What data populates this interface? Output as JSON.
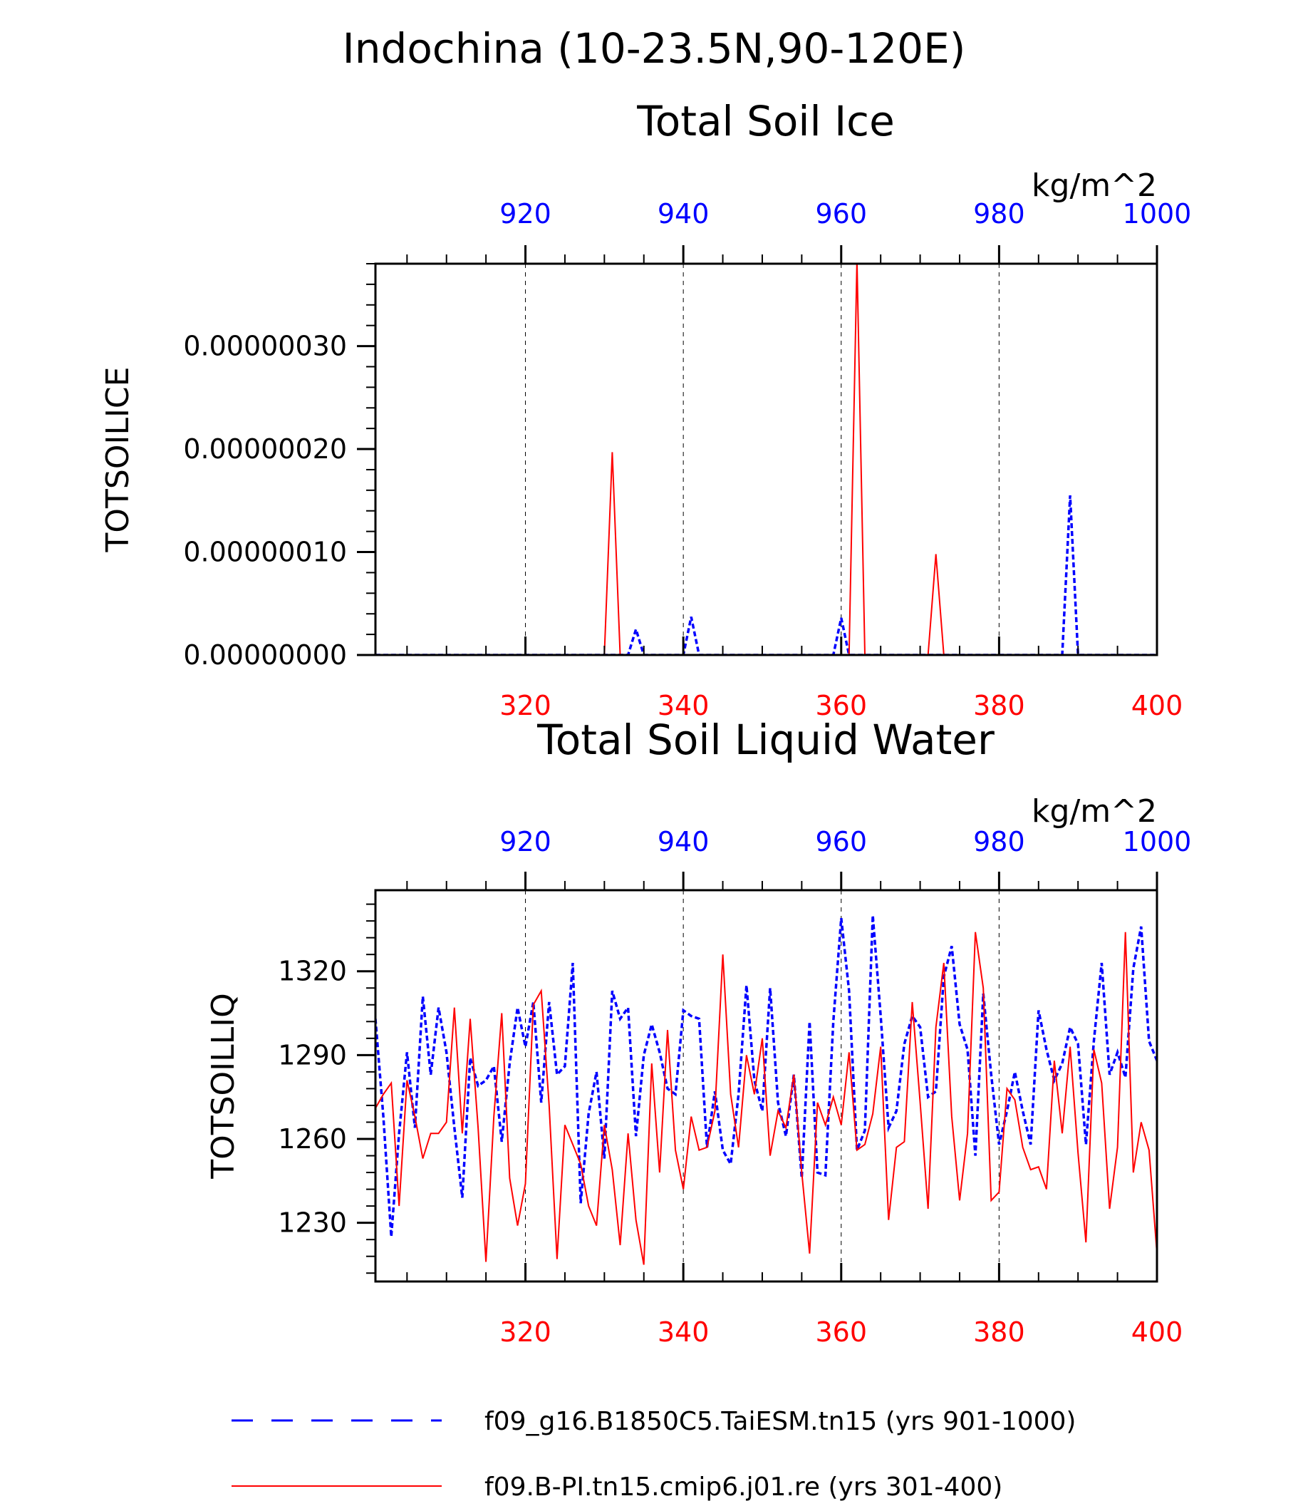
{
  "main_title": "Indochina (10-23.5N,90-120E)",
  "units": "kg/m^2",
  "colors": {
    "series_blue": "#0000ff",
    "series_red": "#ff0000",
    "axis": "#000000"
  },
  "legend": {
    "placement": "bottom",
    "entries": [
      {
        "label": "f09_g16.B1850C5.TaiESM.tn15 (yrs 901-1000)",
        "color": "#0000ff",
        "style": "dashed"
      },
      {
        "label": "f09.B-PI.tn15.cmip6.j01.re (yrs 301-400)",
        "color": "#ff0000",
        "style": "solid"
      }
    ]
  },
  "chart_data": [
    {
      "type": "line",
      "title": "Total Soil Ice",
      "units": "kg/m^2",
      "ylabel": "TOTSOILICE",
      "ylim": [
        0,
        3.8e-07
      ],
      "yticks": [
        0,
        1e-07,
        2e-07,
        3e-07
      ],
      "ytick_labels": [
        "0.00000000",
        "0.00000010",
        "0.00000020",
        "0.00000030"
      ],
      "x_top": {
        "range": [
          901,
          1000
        ],
        "ticks": [
          920,
          940,
          960,
          980,
          1000
        ],
        "color": "#0000ff"
      },
      "x_bottom": {
        "range": [
          301,
          400
        ],
        "ticks": [
          320,
          340,
          360,
          380,
          400
        ],
        "color": "#ff0000"
      },
      "grid": "vertical-dashed",
      "series": [
        {
          "axis": "top",
          "color": "#0000ff",
          "style": "dashed",
          "x": [
            901,
            902,
            903,
            904,
            905,
            906,
            907,
            908,
            909,
            910,
            911,
            912,
            913,
            914,
            915,
            916,
            917,
            918,
            919,
            920,
            921,
            922,
            923,
            924,
            925,
            926,
            927,
            928,
            929,
            930,
            931,
            932,
            933,
            934,
            935,
            936,
            937,
            938,
            939,
            940,
            941,
            942,
            943,
            944,
            945,
            946,
            947,
            948,
            949,
            950,
            951,
            952,
            953,
            954,
            955,
            956,
            957,
            958,
            959,
            960,
            961,
            962,
            963,
            964,
            965,
            966,
            967,
            968,
            969,
            970,
            971,
            972,
            973,
            974,
            975,
            976,
            977,
            978,
            979,
            980,
            981,
            982,
            983,
            984,
            985,
            986,
            987,
            988,
            989,
            990,
            991,
            992,
            993,
            994,
            995,
            996,
            997,
            998,
            999,
            1000
          ],
          "y": [
            0,
            0,
            0,
            0,
            0,
            0,
            0,
            0,
            0,
            0,
            0,
            0,
            0,
            0,
            0,
            0,
            0,
            0,
            0,
            0,
            0,
            0,
            0,
            0,
            0,
            0,
            0,
            0,
            0,
            0,
            0,
            0,
            0,
            2.5e-08,
            0,
            0,
            0,
            0,
            0,
            0,
            3.7e-08,
            0,
            0,
            0,
            0,
            0,
            0,
            0,
            0,
            0,
            0,
            0,
            0,
            0,
            0,
            0,
            0,
            0,
            0,
            3.6e-08,
            0,
            0,
            0,
            0,
            0,
            0,
            0,
            0,
            0,
            0,
            0,
            0,
            0,
            0,
            0,
            0,
            0,
            0,
            0,
            0,
            0,
            0,
            0,
            0,
            0,
            0,
            0,
            0,
            1.55e-07,
            0,
            0,
            0,
            0,
            0,
            0,
            0,
            0,
            0,
            0,
            0
          ]
        },
        {
          "axis": "bottom",
          "color": "#ff0000",
          "style": "solid",
          "x": [
            301,
            302,
            303,
            304,
            305,
            306,
            307,
            308,
            309,
            310,
            311,
            312,
            313,
            314,
            315,
            316,
            317,
            318,
            319,
            320,
            321,
            322,
            323,
            324,
            325,
            326,
            327,
            328,
            329,
            330,
            331,
            332,
            333,
            334,
            335,
            336,
            337,
            338,
            339,
            340,
            341,
            342,
            343,
            344,
            345,
            346,
            347,
            348,
            349,
            350,
            351,
            352,
            353,
            354,
            355,
            356,
            357,
            358,
            359,
            360,
            361,
            362,
            363,
            364,
            365,
            366,
            367,
            368,
            369,
            370,
            371,
            372,
            373,
            374,
            375,
            376,
            377,
            378,
            379,
            380,
            381,
            382,
            383,
            384,
            385,
            386,
            387,
            388,
            389,
            390,
            391,
            392,
            393,
            394,
            395,
            396,
            397,
            398,
            399,
            400
          ],
          "y": [
            0,
            0,
            0,
            0,
            0,
            0,
            0,
            0,
            0,
            0,
            0,
            0,
            0,
            0,
            0,
            0,
            0,
            0,
            0,
            0,
            0,
            0,
            0,
            0,
            0,
            0,
            0,
            0,
            0,
            0,
            1.97e-07,
            0,
            0,
            0,
            0,
            0,
            0,
            0,
            0,
            0,
            0,
            0,
            0,
            0,
            0,
            0,
            0,
            0,
            0,
            0,
            0,
            0,
            0,
            0,
            0,
            0,
            0,
            0,
            0,
            0,
            0,
            3.83e-07,
            0,
            0,
            0,
            0,
            0,
            0,
            0,
            0,
            0,
            9.8e-08,
            0,
            0,
            0,
            0,
            0,
            0,
            0,
            0,
            0,
            0,
            0,
            0,
            0,
            0,
            0,
            0,
            0,
            0,
            0,
            0,
            0,
            0,
            0,
            0,
            0,
            0,
            0,
            0
          ]
        }
      ]
    },
    {
      "type": "line",
      "title": "Total Soil Liquid Water",
      "units": "kg/m^2",
      "ylabel": "TOTSOILLIQ",
      "ylim": [
        1209,
        1349
      ],
      "yticks": [
        1230,
        1260,
        1290,
        1320
      ],
      "ytick_labels": [
        "1230",
        "1260",
        "1290",
        "1320"
      ],
      "x_top": {
        "range": [
          901,
          1000
        ],
        "ticks": [
          920,
          940,
          960,
          980,
          1000
        ],
        "color": "#0000ff"
      },
      "x_bottom": {
        "range": [
          301,
          400
        ],
        "ticks": [
          320,
          340,
          360,
          380,
          400
        ],
        "color": "#ff0000"
      },
      "grid": "vertical-dashed",
      "series": [
        {
          "axis": "top",
          "color": "#0000ff",
          "style": "dashed",
          "x": [
            901,
            902,
            903,
            904,
            905,
            906,
            907,
            908,
            909,
            910,
            911,
            912,
            913,
            914,
            915,
            916,
            917,
            918,
            919,
            920,
            921,
            922,
            923,
            924,
            925,
            926,
            927,
            928,
            929,
            930,
            931,
            932,
            933,
            934,
            935,
            936,
            937,
            938,
            939,
            940,
            941,
            942,
            943,
            944,
            945,
            946,
            947,
            948,
            949,
            950,
            951,
            952,
            953,
            954,
            955,
            956,
            957,
            958,
            959,
            960,
            961,
            962,
            963,
            964,
            965,
            966,
            967,
            968,
            969,
            970,
            971,
            972,
            973,
            974,
            975,
            976,
            977,
            978,
            979,
            980,
            981,
            982,
            983,
            984,
            985,
            986,
            987,
            988,
            989,
            990,
            991,
            992,
            993,
            994,
            995,
            996,
            997,
            998,
            999,
            1000
          ],
          "y": [
            1303,
            1268,
            1225,
            1262,
            1291,
            1264,
            1311,
            1283,
            1307,
            1291,
            1264,
            1239,
            1289,
            1279,
            1281,
            1286,
            1259,
            1287,
            1307,
            1293,
            1309,
            1273,
            1309,
            1283,
            1286,
            1323,
            1237,
            1269,
            1284,
            1253,
            1313,
            1303,
            1307,
            1261,
            1290,
            1301,
            1291,
            1278,
            1276,
            1306,
            1304,
            1303,
            1257,
            1277,
            1256,
            1251,
            1276,
            1315,
            1281,
            1270,
            1314,
            1273,
            1261,
            1283,
            1246,
            1302,
            1248,
            1247,
            1302,
            1339,
            1313,
            1256,
            1263,
            1340,
            1304,
            1264,
            1270,
            1294,
            1304,
            1300,
            1275,
            1277,
            1318,
            1329,
            1301,
            1292,
            1254,
            1312,
            1283,
            1258,
            1270,
            1284,
            1270,
            1258,
            1306,
            1292,
            1281,
            1287,
            1300,
            1294,
            1258,
            1295,
            1323,
            1283,
            1291,
            1282,
            1321,
            1336,
            1295,
            1288
          ]
        },
        {
          "axis": "bottom",
          "color": "#ff0000",
          "style": "solid",
          "x": [
            301,
            302,
            303,
            304,
            305,
            306,
            307,
            308,
            309,
            310,
            311,
            312,
            313,
            314,
            315,
            316,
            317,
            318,
            319,
            320,
            321,
            322,
            323,
            324,
            325,
            326,
            327,
            328,
            329,
            330,
            331,
            332,
            333,
            334,
            335,
            336,
            337,
            338,
            339,
            340,
            341,
            342,
            343,
            344,
            345,
            346,
            347,
            348,
            349,
            350,
            351,
            352,
            353,
            354,
            355,
            356,
            357,
            358,
            359,
            360,
            361,
            362,
            363,
            364,
            365,
            366,
            367,
            368,
            369,
            370,
            371,
            372,
            373,
            374,
            375,
            376,
            377,
            378,
            379,
            380,
            381,
            382,
            383,
            384,
            385,
            386,
            387,
            388,
            389,
            390,
            391,
            392,
            393,
            394,
            395,
            396,
            397,
            398,
            399,
            400
          ],
          "y": [
            1271,
            1276,
            1280,
            1236,
            1281,
            1268,
            1253,
            1262,
            1262,
            1266,
            1307,
            1262,
            1303,
            1264,
            1216,
            1268,
            1305,
            1246,
            1229,
            1244,
            1308,
            1313,
            1272,
            1217,
            1265,
            1258,
            1251,
            1236,
            1229,
            1265,
            1249,
            1222,
            1262,
            1231,
            1215,
            1287,
            1248,
            1299,
            1256,
            1242,
            1268,
            1256,
            1257,
            1270,
            1326,
            1276,
            1257,
            1290,
            1276,
            1296,
            1254,
            1270,
            1264,
            1283,
            1248,
            1219,
            1273,
            1265,
            1275,
            1265,
            1291,
            1256,
            1258,
            1269,
            1293,
            1231,
            1257,
            1259,
            1309,
            1273,
            1235,
            1300,
            1323,
            1268,
            1238,
            1262,
            1334,
            1314,
            1238,
            1241,
            1278,
            1274,
            1257,
            1249,
            1250,
            1242,
            1288,
            1262,
            1293,
            1255,
            1223,
            1292,
            1280,
            1235,
            1257,
            1334,
            1248,
            1266,
            1256,
            1219
          ]
        }
      ]
    }
  ]
}
